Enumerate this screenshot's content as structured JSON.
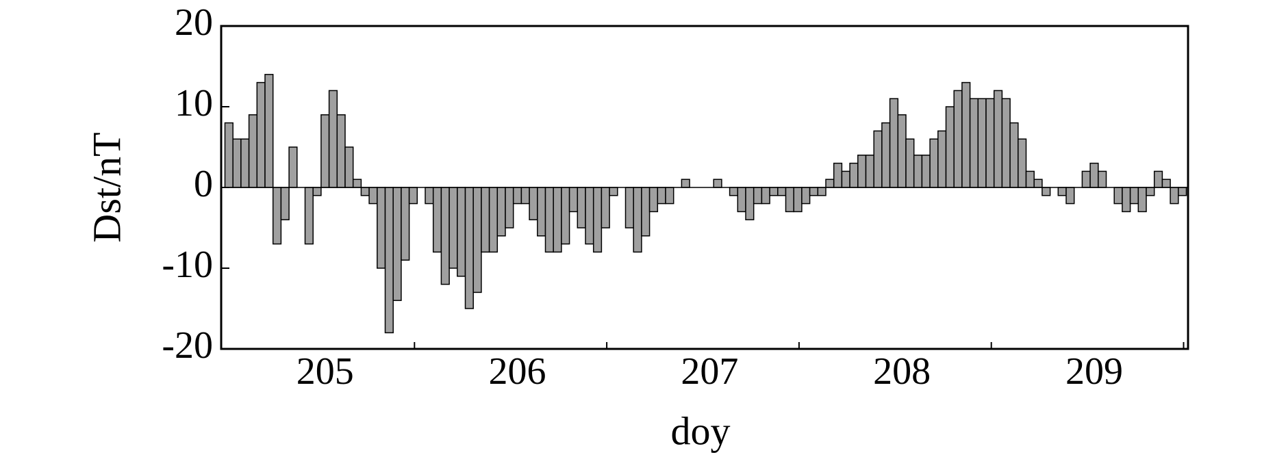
{
  "chart_data": {
    "type": "bar",
    "xlabel": "doy",
    "ylabel": "Dst/nT",
    "categories": [
      null,
      null,
      null,
      null,
      null,
      null,
      null,
      null,
      null,
      null,
      null,
      null,
      "205",
      null,
      null,
      null,
      null,
      null,
      null,
      null,
      null,
      null,
      null,
      null,
      null,
      null,
      null,
      null,
      null,
      null,
      null,
      null,
      null,
      null,
      null,
      null,
      "206",
      null,
      null,
      null,
      null,
      null,
      null,
      null,
      null,
      null,
      null,
      null,
      null,
      null,
      null,
      null,
      null,
      null,
      null,
      null,
      null,
      null,
      null,
      null,
      "207",
      null,
      null,
      null,
      null,
      null,
      null,
      null,
      null,
      null,
      null,
      null,
      null,
      null,
      null,
      null,
      null,
      null,
      null,
      null,
      null,
      null,
      null,
      null,
      "208",
      null,
      null,
      null,
      null,
      null,
      null,
      null,
      null,
      null,
      null,
      null,
      null,
      null,
      null,
      null,
      null,
      null,
      null,
      null,
      null,
      null,
      null,
      null,
      "209",
      null,
      null,
      null,
      null,
      null,
      null,
      null,
      null,
      null,
      null,
      null
    ],
    "values": [
      8,
      6,
      6,
      9,
      13,
      14,
      -7,
      -4,
      5,
      0,
      -7,
      -1,
      9,
      12,
      9,
      5,
      1,
      -1,
      -2,
      -10,
      -18,
      -14,
      -9,
      -2,
      0,
      -2,
      -8,
      -12,
      -10,
      -11,
      -15,
      -13,
      -8,
      -8,
      -6,
      -5,
      -2,
      -2,
      -4,
      -6,
      -8,
      -8,
      -7,
      -3,
      -5,
      -7,
      -8,
      -5,
      -1,
      0,
      -5,
      -8,
      -6,
      -3,
      -2,
      -2,
      0,
      1,
      0,
      0,
      0,
      1,
      0,
      -1,
      -3,
      -4,
      -2,
      -2,
      -1,
      -1,
      -3,
      -3,
      -2,
      -1,
      -1,
      1,
      3,
      2,
      3,
      4,
      4,
      7,
      8,
      11,
      9,
      6,
      4,
      4,
      6,
      7,
      10,
      12,
      13,
      11,
      11,
      11,
      12,
      11,
      8,
      6,
      2,
      1,
      -1,
      0,
      -1,
      -2,
      0,
      2,
      3,
      2,
      0,
      -2,
      -3,
      -2,
      -3,
      -1,
      2,
      1,
      -2,
      -1
    ],
    "color": "#a0a0a0",
    "ylim": [
      -20,
      20
    ],
    "yticks": [
      -20,
      -10,
      0,
      10,
      20
    ]
  }
}
